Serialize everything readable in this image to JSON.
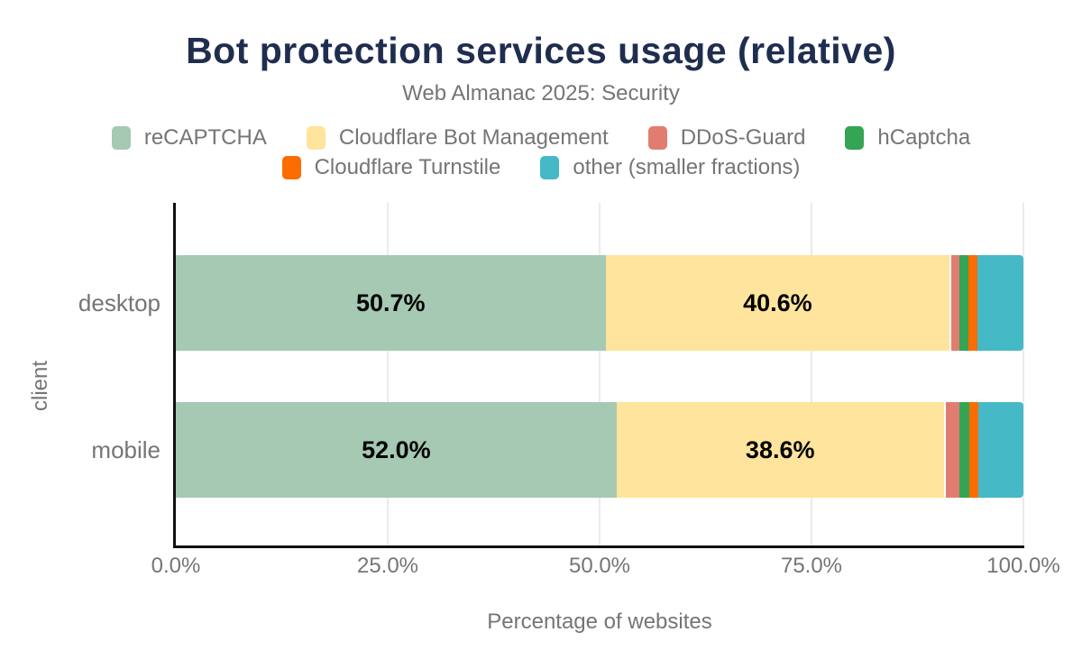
{
  "title": "Bot protection services usage (relative)",
  "subtitle": "Web Almanac 2025: Security",
  "theme": {
    "title_color": "#1f2d4f",
    "text_gray": "#757575",
    "axis_color": "#111111",
    "grid_color": "#ebebeb",
    "bar_label_color": "#000000",
    "background": "#ffffff"
  },
  "chart_data": {
    "type": "bar",
    "orientation": "horizontal",
    "stacked": true,
    "title": "Bot protection services usage (relative)",
    "subtitle": "Web Almanac 2025: Security",
    "categories": [
      "desktop",
      "mobile"
    ],
    "series": [
      {
        "name": "reCAPTCHA",
        "color": "#a5c9b3",
        "values": [
          50.7,
          52.0
        ],
        "labels": [
          "50.7%",
          "52.0%"
        ]
      },
      {
        "name": "Cloudflare Bot Management",
        "color": "#fee49c",
        "values": [
          40.6,
          38.6
        ],
        "labels": [
          "40.6%",
          "38.6%"
        ]
      },
      {
        "name": "DDoS-Guard",
        "color": "#e17d70",
        "values": [
          1.1,
          1.9
        ],
        "labels": [
          null,
          null
        ]
      },
      {
        "name": "hCaptcha",
        "color": "#35a455",
        "values": [
          1.1,
          1.1
        ],
        "labels": [
          null,
          null
        ]
      },
      {
        "name": "Cloudflare Turnstile",
        "color": "#fb6d00",
        "values": [
          1.1,
          1.1
        ],
        "labels": [
          null,
          null
        ]
      },
      {
        "name": "other (smaller fractions)",
        "color": "#45b9c6",
        "values": [
          5.4,
          5.3
        ],
        "labels": [
          null,
          null
        ]
      }
    ],
    "xlabel": "Percentage of websites",
    "ylabel": "client",
    "x_ticks": [
      "0.0%",
      "25.0%",
      "50.0%",
      "75.0%",
      "100.0%"
    ],
    "xlim": [
      0,
      100
    ],
    "grid": "vertical",
    "legend_position": "top",
    "legend_rows": [
      [
        0,
        1,
        2,
        3
      ],
      [
        4,
        5
      ]
    ]
  }
}
